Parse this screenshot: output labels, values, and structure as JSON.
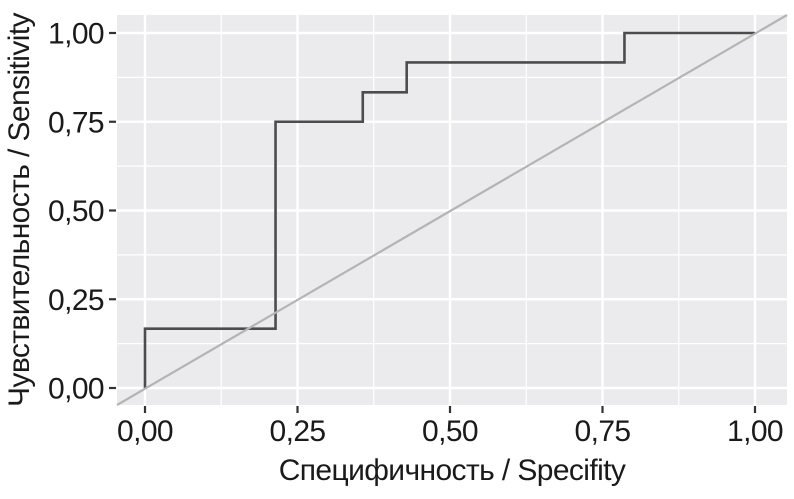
{
  "chart_data": {
    "type": "line",
    "subtype": "roc-step-curve",
    "title": "",
    "xlabel": "Специфичность / Specifity",
    "ylabel": "Чувствительность / Sensitivity",
    "xlim": [
      0,
      1
    ],
    "ylim": [
      0,
      1
    ],
    "grid": true,
    "legend_position": "none",
    "x_tick_values": [
      0,
      0.25,
      0.5,
      0.75,
      1.0
    ],
    "x_tick_labels": [
      "0,00",
      "0,25",
      "0,50",
      "0,75",
      "1,00"
    ],
    "y_tick_values": [
      0,
      0.25,
      0.5,
      0.75,
      1.0
    ],
    "y_tick_labels": [
      "0,00",
      "0,25",
      "0,50",
      "0,75",
      "1,00"
    ],
    "minor_grid_values": [
      0.125,
      0.375,
      0.625,
      0.875
    ],
    "series": [
      {
        "name": "roc-curve",
        "draw": "step-path",
        "color": "#4c4c4c",
        "points": [
          [
            0,
            0
          ],
          [
            0,
            0.167
          ],
          [
            0.214,
            0.167
          ],
          [
            0.214,
            0.75
          ],
          [
            0.357,
            0.75
          ],
          [
            0.357,
            0.833
          ],
          [
            0.429,
            0.833
          ],
          [
            0.429,
            0.917
          ],
          [
            0.786,
            0.917
          ],
          [
            0.786,
            1.0
          ],
          [
            1.0,
            1.0
          ]
        ]
      },
      {
        "name": "reference-diagonal",
        "draw": "abline-full-panel",
        "color": "#b4b4b4",
        "points": [
          [
            0,
            0
          ],
          [
            1,
            1
          ]
        ]
      }
    ],
    "colors": {
      "panel_background": "#ebebed",
      "outer_background": "#ffffff",
      "major_gridline": "#ffffff",
      "minor_gridline": "#ffffff",
      "tick_mark": "#333333",
      "text": "#1a1a1a"
    }
  }
}
